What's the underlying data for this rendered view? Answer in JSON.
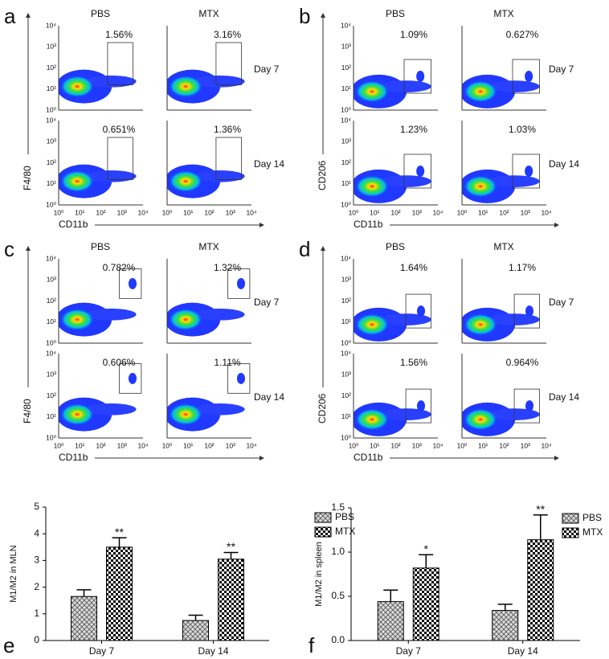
{
  "flow_tick_labels": [
    "10⁰",
    "10¹",
    "10²",
    "10³",
    "10⁴"
  ],
  "flow_panels": [
    {
      "letter": "a",
      "columns": [
        "PBS",
        "MTX"
      ],
      "rows": [
        "Day 7",
        "Day 14"
      ],
      "percents": [
        [
          "1.56%",
          "3.16%"
        ],
        [
          "0.651%",
          "1.36%"
        ]
      ],
      "y_label": "F4/80",
      "x_label": "CD11b"
    },
    {
      "letter": "b",
      "columns": [
        "PBS",
        "MTX"
      ],
      "rows": [
        "Day 7",
        "Day 14"
      ],
      "percents": [
        [
          "1.09%",
          "0.627%"
        ],
        [
          "1.23%",
          "1.03%"
        ]
      ],
      "y_label": "CD206",
      "x_label": "CD11b"
    },
    {
      "letter": "c",
      "columns": [
        "PBS",
        "MTX"
      ],
      "rows": [
        "Day 7",
        "Day 14"
      ],
      "percents": [
        [
          "0.782%",
          "1.32%"
        ],
        [
          "0.606%",
          "1.11%"
        ]
      ],
      "y_label": "F4/80",
      "x_label": "CD11b"
    },
    {
      "letter": "d",
      "columns": [
        "PBS",
        "MTX"
      ],
      "rows": [
        "Day 7",
        "Day 14"
      ],
      "percents": [
        [
          "1.64%",
          "1.17%"
        ],
        [
          "1.56%",
          "0.964%"
        ]
      ],
      "y_label": "CD206",
      "x_label": "CD11b"
    }
  ],
  "chart_data": [
    {
      "type": "bar",
      "panel_label": "e",
      "ylabel": "M1/M2 in MLN",
      "categories": [
        "Day 7",
        "Day 14"
      ],
      "ylim": [
        0,
        5
      ],
      "yticks": [
        0,
        1,
        2,
        3,
        4,
        5
      ],
      "series": [
        {
          "name": "PBS",
          "color": "#666666",
          "values": [
            1.65,
            0.75
          ],
          "errors": [
            0.25,
            0.2
          ]
        },
        {
          "name": "MTX",
          "color": "#000000",
          "values": [
            3.5,
            3.05
          ],
          "errors": [
            0.35,
            0.25
          ],
          "annotations": [
            "**",
            "**"
          ]
        }
      ]
    },
    {
      "type": "bar",
      "panel_label": "f",
      "ylabel": "M1/M2 in spleen",
      "categories": [
        "Day 7",
        "Day 14"
      ],
      "ylim": [
        0,
        1.5
      ],
      "yticks": [
        {
          "value": 0,
          "label": "0.0"
        },
        {
          "value": 0.5,
          "label": "0.5"
        },
        {
          "value": 1,
          "label": "1.0"
        },
        {
          "value": 1.5,
          "label": "1.5"
        }
      ],
      "series": [
        {
          "name": "PBS",
          "color": "#666666",
          "values": [
            0.44,
            0.34
          ],
          "errors": [
            0.13,
            0.07
          ]
        },
        {
          "name": "MTX",
          "color": "#000000",
          "values": [
            0.82,
            1.14
          ],
          "errors": [
            0.15,
            0.28
          ],
          "annotations": [
            "*",
            "**"
          ]
        }
      ]
    }
  ]
}
